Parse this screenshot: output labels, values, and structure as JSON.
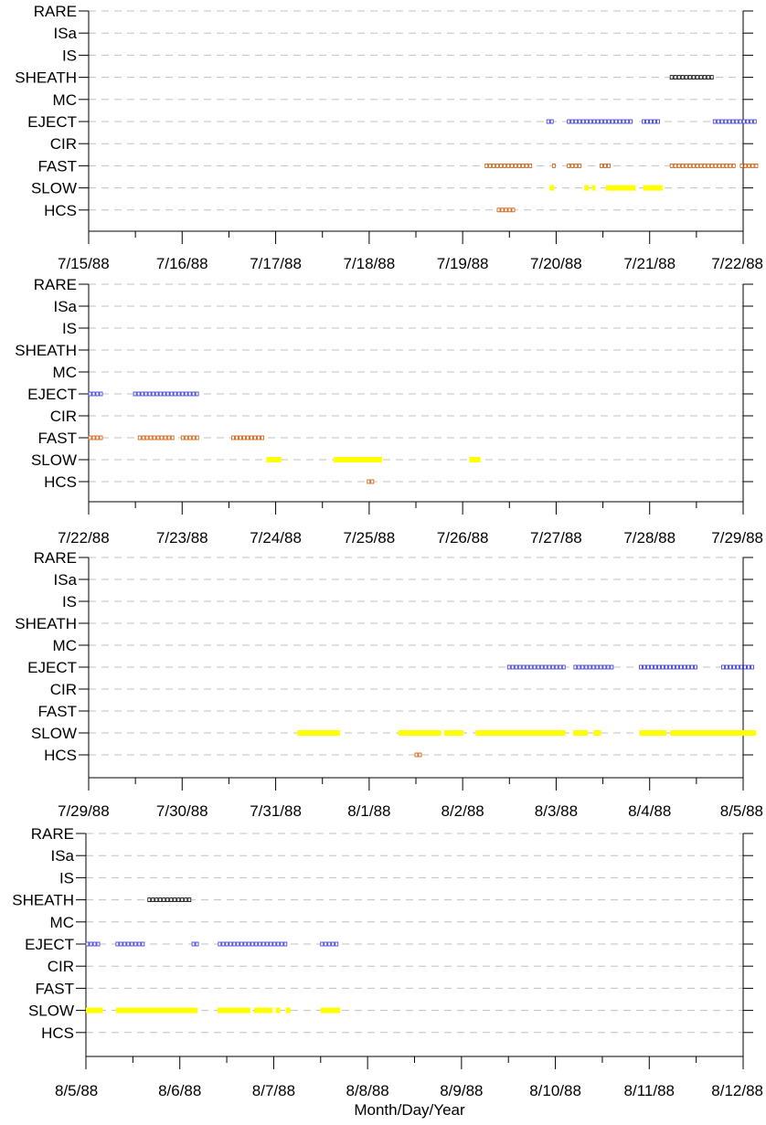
{
  "chart_data": {
    "type": "timeline",
    "xlabel": "Month/Day/Year",
    "categories": [
      "RARE",
      "ISa",
      "IS",
      "SHEATH",
      "MC",
      "EJECT",
      "CIR",
      "FAST",
      "SLOW",
      "HCS"
    ],
    "colors": {
      "SHEATH": "#000000",
      "EJECT": "#3333cc",
      "FAST": "#cc5500",
      "HCS": "#cc5500",
      "SLOW": "#ffff00"
    },
    "grid": true,
    "panels": [
      {
        "date_labels": [
          "7/15/88",
          "7/16/88",
          "7/17/88",
          "7/18/88",
          "7/19/88",
          "7/20/88",
          "7/21/88",
          "7/22/88"
        ],
        "intervals": [
          {
            "category": "SHEATH",
            "start": 6.22,
            "end": 6.68
          },
          {
            "category": "EJECT",
            "start": 4.9,
            "end": 4.98
          },
          {
            "category": "EJECT",
            "start": 5.12,
            "end": 5.84
          },
          {
            "category": "EJECT",
            "start": 5.92,
            "end": 6.13
          },
          {
            "category": "EJECT",
            "start": 6.68,
            "end": 7.17
          },
          {
            "category": "FAST",
            "start": 4.24,
            "end": 4.74
          },
          {
            "category": "FAST",
            "start": 4.96,
            "end": 5.0
          },
          {
            "category": "FAST",
            "start": 5.12,
            "end": 5.3
          },
          {
            "category": "FAST",
            "start": 5.47,
            "end": 5.58
          },
          {
            "category": "FAST",
            "start": 6.22,
            "end": 6.93
          },
          {
            "category": "FAST",
            "start": 6.97,
            "end": 7.17
          },
          {
            "category": "SLOW",
            "start": 4.93,
            "end": 4.98
          },
          {
            "category": "SLOW",
            "start": 5.3,
            "end": 5.35
          },
          {
            "category": "SLOW",
            "start": 5.38,
            "end": 5.42
          },
          {
            "category": "SLOW",
            "start": 5.53,
            "end": 5.85
          },
          {
            "category": "SLOW",
            "start": 5.93,
            "end": 6.14
          },
          {
            "category": "HCS",
            "start": 4.37,
            "end": 4.56
          }
        ]
      },
      {
        "date_labels": [
          "7/22/88",
          "7/23/88",
          "7/24/88",
          "7/25/88",
          "7/26/88",
          "7/27/88",
          "7/28/88",
          "7/29/88"
        ],
        "intervals": [
          {
            "category": "EJECT",
            "start": 0.0,
            "end": 0.18
          },
          {
            "category": "EJECT",
            "start": 0.48,
            "end": 1.19
          },
          {
            "category": "FAST",
            "start": 0.0,
            "end": 0.18
          },
          {
            "category": "FAST",
            "start": 0.53,
            "end": 0.95
          },
          {
            "category": "FAST",
            "start": 0.99,
            "end": 1.19
          },
          {
            "category": "FAST",
            "start": 1.53,
            "end": 1.9
          },
          {
            "category": "SLOW",
            "start": 1.9,
            "end": 2.06
          },
          {
            "category": "SLOW",
            "start": 2.62,
            "end": 3.14
          },
          {
            "category": "SLOW",
            "start": 4.07,
            "end": 4.19
          },
          {
            "category": "HCS",
            "start": 2.98,
            "end": 3.05
          }
        ]
      },
      {
        "date_labels": [
          "7/29/88",
          "7/30/88",
          "7/31/88",
          "8/1/88",
          "8/2/88",
          "8/3/88",
          "8/4/88",
          "8/5/88"
        ],
        "intervals": [
          {
            "category": "EJECT",
            "start": 4.48,
            "end": 5.11
          },
          {
            "category": "EJECT",
            "start": 5.19,
            "end": 5.64
          },
          {
            "category": "EJECT",
            "start": 5.89,
            "end": 6.51
          },
          {
            "category": "EJECT",
            "start": 6.77,
            "end": 7.14
          },
          {
            "category": "SLOW",
            "start": 2.23,
            "end": 2.69
          },
          {
            "category": "SLOW",
            "start": 3.31,
            "end": 3.77
          },
          {
            "category": "SLOW",
            "start": 3.8,
            "end": 4.01
          },
          {
            "category": "SLOW",
            "start": 4.14,
            "end": 5.1
          },
          {
            "category": "SLOW",
            "start": 5.18,
            "end": 5.34
          },
          {
            "category": "SLOW",
            "start": 5.4,
            "end": 5.48
          },
          {
            "category": "SLOW",
            "start": 5.89,
            "end": 6.18
          },
          {
            "category": "SLOW",
            "start": 6.22,
            "end": 7.14
          },
          {
            "category": "HCS",
            "start": 3.49,
            "end": 3.58
          }
        ]
      },
      {
        "date_labels": [
          "8/5/88",
          "8/6/88",
          "8/7/88",
          "8/8/88",
          "8/9/88",
          "8/10/88",
          "8/11/88",
          "8/12/88"
        ],
        "intervals": [
          {
            "category": "SHEATH",
            "start": 0.66,
            "end": 1.12
          },
          {
            "category": "EJECT",
            "start": 0.0,
            "end": 0.18
          },
          {
            "category": "EJECT",
            "start": 0.32,
            "end": 0.64
          },
          {
            "category": "EJECT",
            "start": 1.13,
            "end": 1.2
          },
          {
            "category": "EJECT",
            "start": 1.41,
            "end": 2.15
          },
          {
            "category": "EJECT",
            "start": 2.5,
            "end": 2.7
          },
          {
            "category": "SLOW",
            "start": 0.0,
            "end": 0.18
          },
          {
            "category": "SLOW",
            "start": 0.32,
            "end": 1.19
          },
          {
            "category": "SLOW",
            "start": 1.4,
            "end": 1.75
          },
          {
            "category": "SLOW",
            "start": 1.79,
            "end": 1.99
          },
          {
            "category": "SLOW",
            "start": 2.02,
            "end": 2.07
          },
          {
            "category": "SLOW",
            "start": 2.13,
            "end": 2.18
          },
          {
            "category": "SLOW",
            "start": 2.5,
            "end": 2.71
          }
        ]
      }
    ]
  }
}
